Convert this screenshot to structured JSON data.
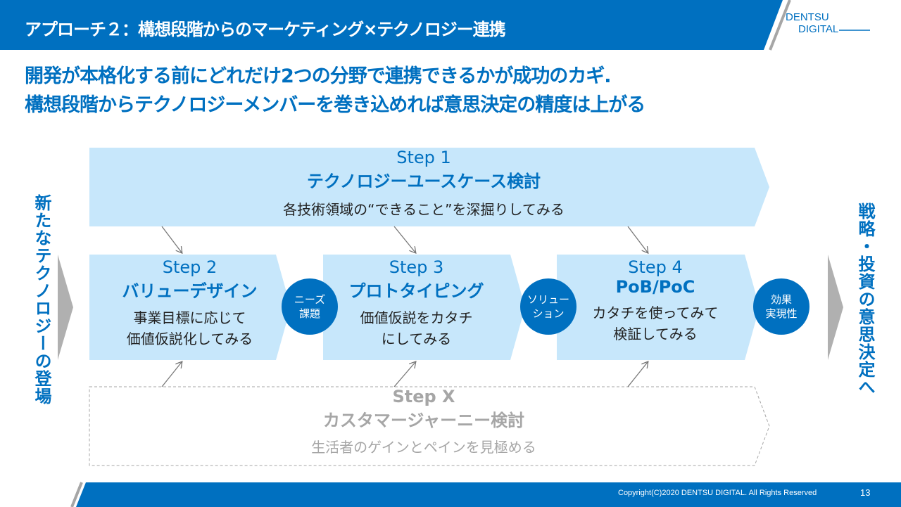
{
  "header": {
    "title": "アプローチ２：構想段階からのマーケティング×テクノロジー連携",
    "logo_line1": "DENTSU",
    "logo_line2": "DIGITAL"
  },
  "headline": {
    "line1": "開発が本格化する前にどれだけ2つの分野で連携できるかが成功のカギ.",
    "line2": "構想段階からテクノロジーメンバーを巻き込めれば意思決定の精度は上がる"
  },
  "left_label": "新たなテクノロジーの登場",
  "right_label": "戦略・投資の意思決定へ",
  "steps": [
    {
      "num": "Step 1",
      "title": "テクノロジーユースケース検討",
      "desc1": "各技術領域の“できること”を深掘りしてみる"
    },
    {
      "num": "Step 2",
      "title": "バリューデザイン",
      "desc1": "事業目標に応じて",
      "desc2": "価値仮説化してみる"
    },
    {
      "num": "Step 3",
      "title": "プロトタイピング",
      "desc1": "価値仮説をカタチ",
      "desc2": "にしてみる"
    },
    {
      "num": "Step 4",
      "title": "PoB/PoC",
      "desc1": "カタチを使ってみて",
      "desc2": "検証してみる"
    },
    {
      "num": "Step X",
      "title": "カスタマージャーニー検討",
      "desc1": "生活者のゲインとペインを見極める"
    }
  ],
  "circles": [
    {
      "l1": "ニーズ",
      "l2": "課題"
    },
    {
      "l1": "ソリュー",
      "l2": "ション"
    },
    {
      "l1": "効果",
      "l2": "実現性"
    }
  ],
  "footer": {
    "copyright": "Copyright(C)2020 DENTSU DIGITAL. All Rights Reserved",
    "page": "13"
  },
  "colors": {
    "brand": "#0070c0",
    "chevron": "#c7e7fb",
    "gray": "#a6a6a6"
  }
}
